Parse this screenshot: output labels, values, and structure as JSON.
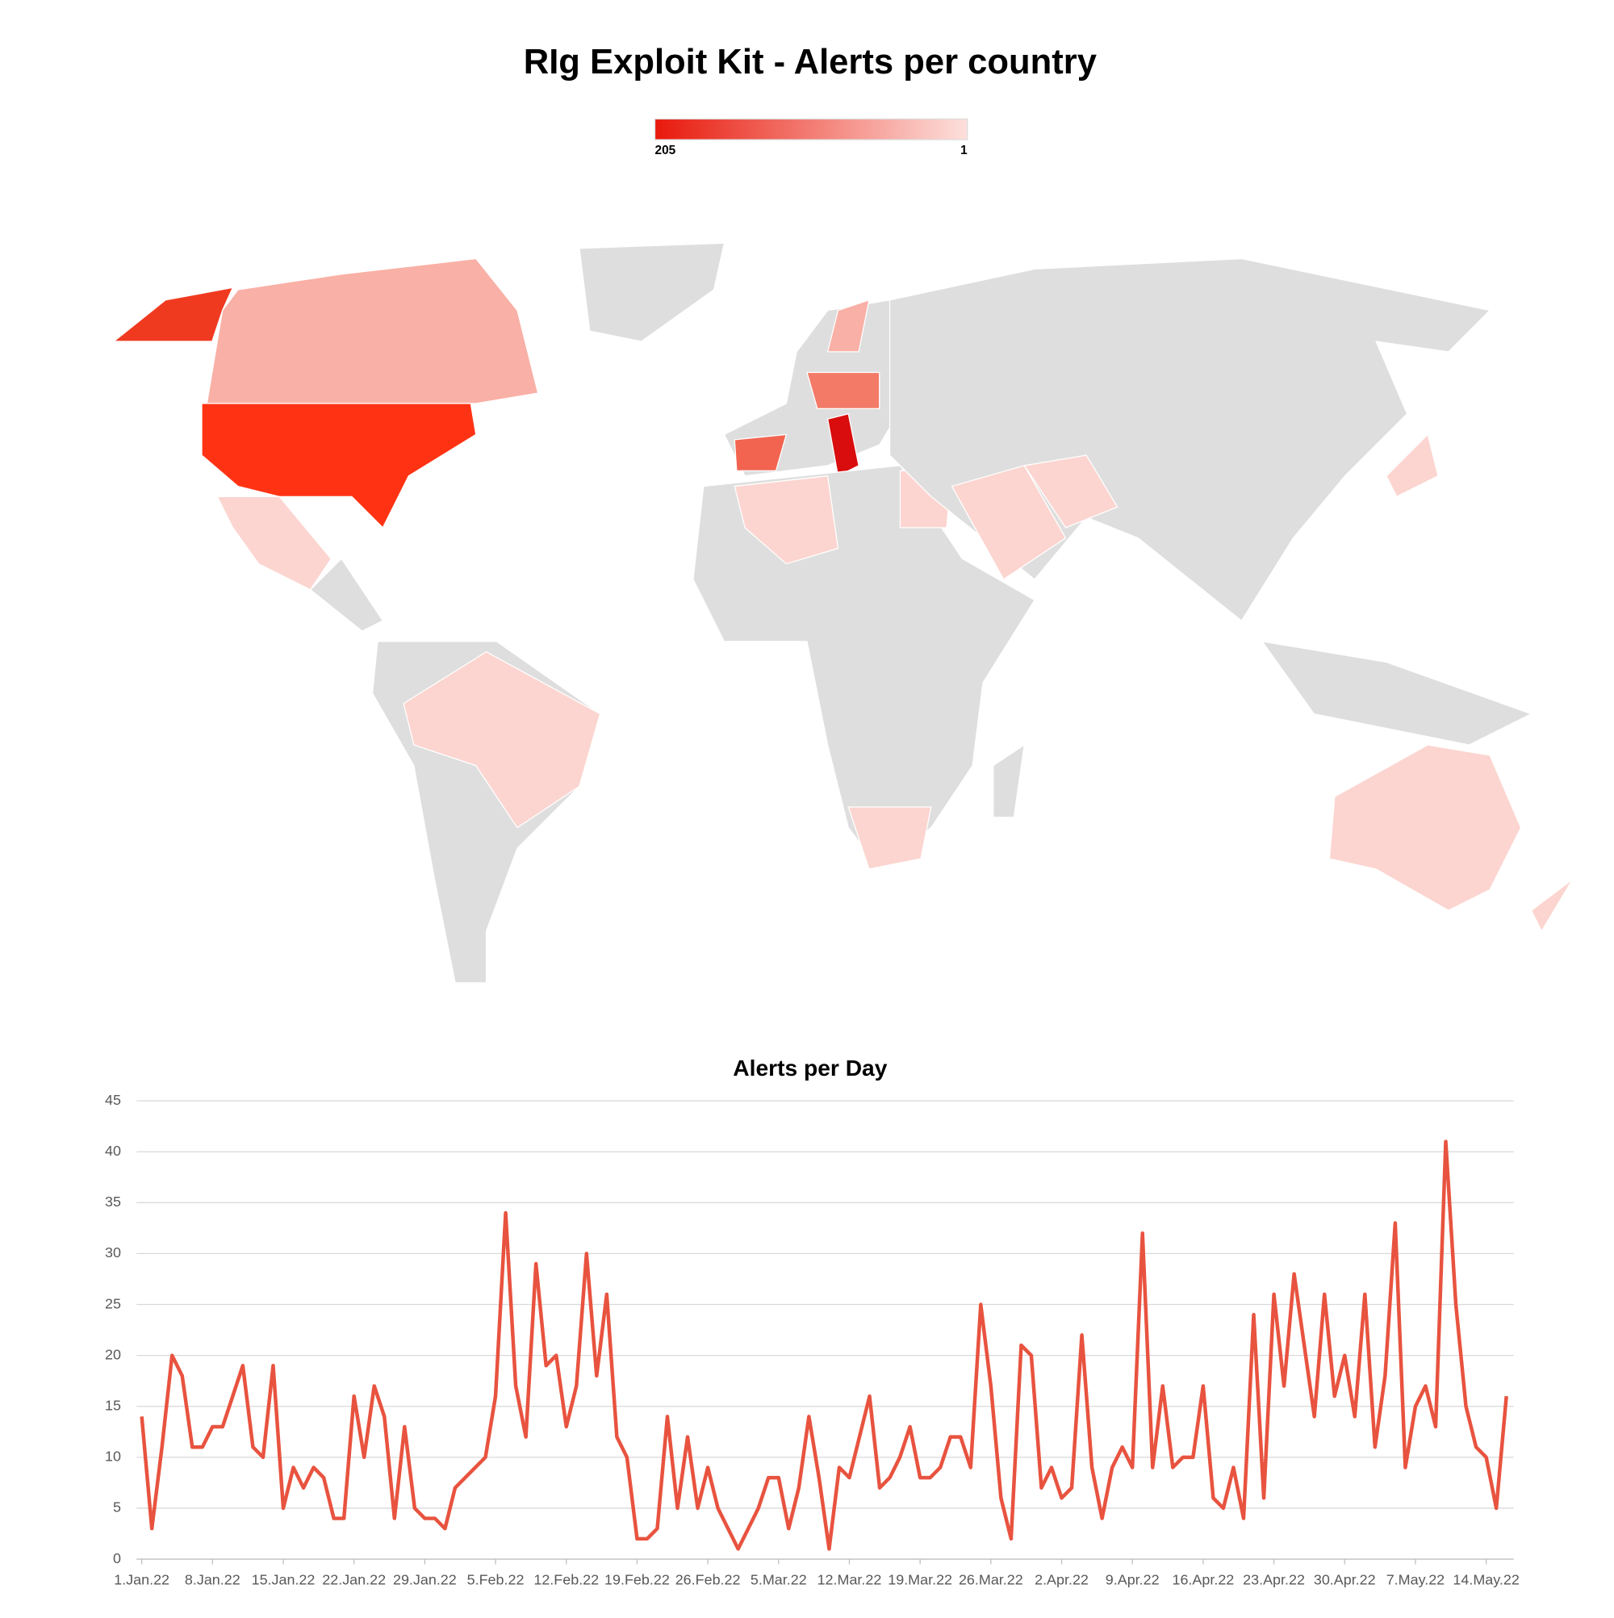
{
  "chart_data": [
    {
      "type": "choropleth",
      "title": "RIg Exploit Kit - Alerts per country",
      "clim": [
        1,
        205
      ],
      "cticks": [
        205,
        1
      ],
      "colors": [
        "#e8190b",
        "#fde0dc"
      ]
    },
    {
      "type": "line",
      "title": "Alerts per Day",
      "categories": [
        "1.Jan.22",
        null,
        null,
        null,
        null,
        null,
        null,
        "8.Jan.22",
        null,
        null,
        null,
        null,
        null,
        null,
        "15.Jan.22",
        null,
        null,
        null,
        null,
        null,
        null,
        "22.Jan.22",
        null,
        null,
        null,
        null,
        null,
        null,
        "29.Jan.22",
        null,
        null,
        null,
        null,
        null,
        null,
        "5.Feb.22",
        null,
        null,
        null,
        null,
        null,
        null,
        "12.Feb.22",
        null,
        null,
        null,
        null,
        null,
        null,
        "19.Feb.22",
        null,
        null,
        null,
        null,
        null,
        null,
        "26.Feb.22",
        null,
        null,
        null,
        null,
        null,
        null,
        "5.Mar.22",
        null,
        null,
        null,
        null,
        null,
        null,
        "12.Mar.22",
        null,
        null,
        null,
        null,
        null,
        null,
        "19.Mar.22",
        null,
        null,
        null,
        null,
        null,
        null,
        "26.Mar.22",
        null,
        null,
        null,
        null,
        null,
        null,
        "2.Apr.22",
        null,
        null,
        null,
        null,
        null,
        null,
        "9.Apr.22",
        null,
        null,
        null,
        null,
        null,
        null,
        "16.Apr.22",
        null,
        null,
        null,
        null,
        null,
        null,
        "23.Apr.22",
        null,
        null,
        null,
        null,
        null,
        null,
        "30.Apr.22",
        null,
        null,
        null,
        null,
        null,
        null,
        "7.May.22",
        null,
        null,
        null,
        null,
        null,
        null,
        "14.May.22",
        null,
        null
      ],
      "values": [
        14,
        3,
        11,
        20,
        18,
        11,
        11,
        13,
        13,
        16,
        19,
        11,
        10,
        19,
        5,
        9,
        7,
        9,
        8,
        4,
        4,
        16,
        10,
        17,
        14,
        4,
        13,
        5,
        4,
        4,
        3,
        7,
        8,
        9,
        10,
        16,
        34,
        17,
        12,
        29,
        19,
        20,
        13,
        17,
        30,
        18,
        26,
        12,
        10,
        2,
        2,
        3,
        14,
        5,
        12,
        5,
        9,
        5,
        3,
        1,
        3,
        5,
        8,
        8,
        3,
        7,
        14,
        8,
        1,
        9,
        8,
        12,
        16,
        7,
        8,
        10,
        13,
        8,
        8,
        9,
        12,
        12,
        9,
        25,
        17,
        6,
        2,
        21,
        20,
        7,
        9,
        6,
        7,
        22,
        9,
        4,
        9,
        11,
        9,
        32,
        9,
        17,
        9,
        10,
        10,
        17,
        6,
        5,
        9,
        4,
        24,
        6,
        26,
        17,
        28,
        21,
        14,
        26,
        16,
        20,
        14,
        26,
        11,
        18,
        33,
        9,
        15,
        17,
        13,
        41,
        25,
        15,
        11,
        10,
        5,
        16
      ],
      "color": "#e8533f",
      "ylim": [
        0,
        45
      ],
      "yticks": [
        0,
        5,
        10,
        15,
        20,
        25,
        30,
        35,
        40,
        45
      ],
      "grid": true
    }
  ]
}
